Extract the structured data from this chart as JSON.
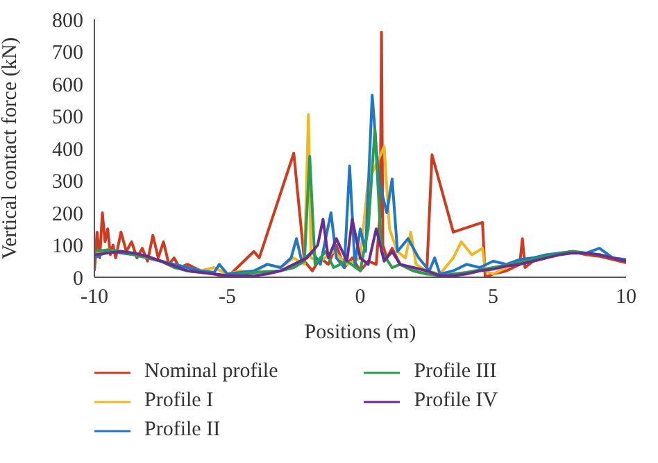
{
  "chart_data": {
    "type": "line",
    "xlabel": "Positions (m)",
    "ylabel": "Vertical contact force (kN)",
    "xlim": [
      -10,
      10
    ],
    "xticks": [
      -10,
      -5,
      0,
      5,
      10
    ],
    "ylim": [
      0,
      800
    ],
    "yticks": [
      0,
      100,
      200,
      300,
      400,
      500,
      600,
      700,
      800
    ],
    "grid": false,
    "legend": "bottom",
    "marker": "none",
    "line_style": "solid",
    "series": [
      {
        "name": "Nominal profile",
        "color": "#d03a1e",
        "x": [
          -10,
          -9.9,
          -9.8,
          -9.7,
          -9.6,
          -9.5,
          -9.4,
          -9.3,
          -9.2,
          -9.0,
          -8.8,
          -8.6,
          -8.4,
          -8.2,
          -8.0,
          -7.8,
          -7.6,
          -7.4,
          -7.2,
          -7.0,
          -6.8,
          -6.5,
          -6.0,
          -5.5,
          -5.0,
          -4.0,
          -3.8,
          -2.5,
          -2.1,
          -1.8,
          -1.5,
          -1.2,
          -0.9,
          -0.6,
          -0.3,
          0,
          0.3,
          0.6,
          0.75,
          0.8,
          0.85,
          1.0,
          1.2,
          1.5,
          2.0,
          2.5,
          2.7,
          3.5,
          4.6,
          4.7,
          5.0,
          5.5,
          6.0,
          6.1,
          6.2,
          6.5,
          7.0,
          7.5,
          8.0,
          8.5,
          9.0,
          9.5,
          10
        ],
        "values": [
          20,
          140,
          60,
          200,
          110,
          150,
          70,
          100,
          60,
          140,
          80,
          110,
          60,
          90,
          50,
          130,
          60,
          110,
          40,
          60,
          30,
          40,
          20,
          10,
          0,
          80,
          60,
          385,
          50,
          20,
          60,
          40,
          100,
          30,
          60,
          20,
          50,
          40,
          200,
          760,
          100,
          60,
          90,
          40,
          20,
          10,
          380,
          140,
          170,
          0,
          10,
          20,
          40,
          120,
          30,
          50,
          60,
          75,
          80,
          70,
          65,
          55,
          45
        ]
      },
      {
        "name": "Profile I",
        "color": "#f0b820",
        "x": [
          -10,
          -9.5,
          -9,
          -8.5,
          -8,
          -7.5,
          -7,
          -6.5,
          -6,
          -5.5,
          -5,
          -4.5,
          -4,
          -3.5,
          -3,
          -2.5,
          -2.1,
          -1.95,
          -1.85,
          -1.5,
          -1,
          -0.5,
          0,
          0.3,
          0.6,
          0.9,
          1.1,
          1.4,
          1.7,
          1.9,
          2.1,
          2.5,
          3,
          3.5,
          3.8,
          4.2,
          4.6,
          4.7,
          5,
          5.5,
          6
        ],
        "values": [
          70,
          85,
          80,
          70,
          60,
          50,
          40,
          30,
          20,
          30,
          10,
          20,
          15,
          40,
          30,
          60,
          40,
          505,
          60,
          50,
          80,
          40,
          60,
          300,
          350,
          405,
          150,
          80,
          60,
          140,
          40,
          20,
          10,
          60,
          110,
          70,
          90,
          20,
          10,
          30,
          50
        ]
      },
      {
        "name": "Profile II",
        "color": "#1f77c8",
        "x": [
          -10,
          -9.5,
          -9,
          -8.5,
          -8,
          -7.5,
          -7,
          -6.5,
          -6,
          -5.5,
          -5.3,
          -5,
          -4.5,
          -4,
          -3.5,
          -3,
          -2.6,
          -2.4,
          -2.2,
          -1.8,
          -1.5,
          -1.1,
          -0.9,
          -0.6,
          -0.4,
          -0.2,
          0,
          0.2,
          0.45,
          0.7,
          1.0,
          1.2,
          1.4,
          1.8,
          2.2,
          2.6,
          2.8,
          3.0,
          3.5,
          4,
          4.5,
          5,
          5.5,
          6,
          6.5,
          7,
          7.5,
          8,
          8.5,
          9,
          9.5,
          10
        ],
        "values": [
          60,
          80,
          75,
          70,
          60,
          50,
          40,
          30,
          20,
          15,
          40,
          10,
          15,
          20,
          40,
          30,
          60,
          120,
          50,
          80,
          40,
          200,
          60,
          30,
          345,
          40,
          150,
          80,
          565,
          300,
          200,
          305,
          80,
          120,
          60,
          20,
          60,
          10,
          20,
          40,
          30,
          50,
          40,
          55,
          60,
          70,
          75,
          80,
          75,
          90,
          60,
          55
        ]
      },
      {
        "name": "Profile III",
        "color": "#2a9d55",
        "x": [
          -10,
          -9.5,
          -9,
          -8.5,
          -8,
          -7.5,
          -7,
          -6.5,
          -6,
          -5.5,
          -5,
          -4,
          -3,
          -2.5,
          -2.1,
          -1.9,
          -1.7,
          -1.3,
          -1,
          -0.5,
          0,
          0.3,
          0.55,
          0.8,
          1.2,
          1.5,
          2,
          2.5,
          3,
          4,
          5,
          6,
          7,
          8,
          9,
          10
        ],
        "values": [
          80,
          85,
          80,
          70,
          60,
          50,
          30,
          20,
          15,
          10,
          5,
          15,
          20,
          30,
          50,
          375,
          40,
          80,
          30,
          50,
          20,
          150,
          460,
          80,
          30,
          40,
          20,
          10,
          5,
          15,
          30,
          45,
          65,
          80,
          70,
          50
        ]
      },
      {
        "name": "Profile IV",
        "color": "#6a2c91",
        "x": [
          -10,
          -9.5,
          -9,
          -8.5,
          -8,
          -7.5,
          -7,
          -6.5,
          -6,
          -5.5,
          -5,
          -4.5,
          -4,
          -3.5,
          -3,
          -2.5,
          -2,
          -1.6,
          -1.4,
          -1.2,
          -0.9,
          -0.5,
          -0.3,
          0,
          0.3,
          0.6,
          0.9,
          1.2,
          1.5,
          2,
          2.5,
          3,
          3.5,
          4,
          4.5,
          5,
          5.5,
          6,
          6.5,
          7,
          7.5,
          8,
          8.5,
          9,
          9.5,
          10
        ],
        "values": [
          70,
          75,
          80,
          75,
          65,
          50,
          35,
          20,
          15,
          10,
          5,
          5,
          5,
          10,
          20,
          40,
          60,
          100,
          180,
          60,
          120,
          50,
          180,
          60,
          40,
          150,
          50,
          80,
          40,
          30,
          20,
          5,
          5,
          10,
          20,
          25,
          35,
          40,
          50,
          60,
          70,
          75,
          75,
          70,
          60,
          50
        ]
      }
    ]
  }
}
